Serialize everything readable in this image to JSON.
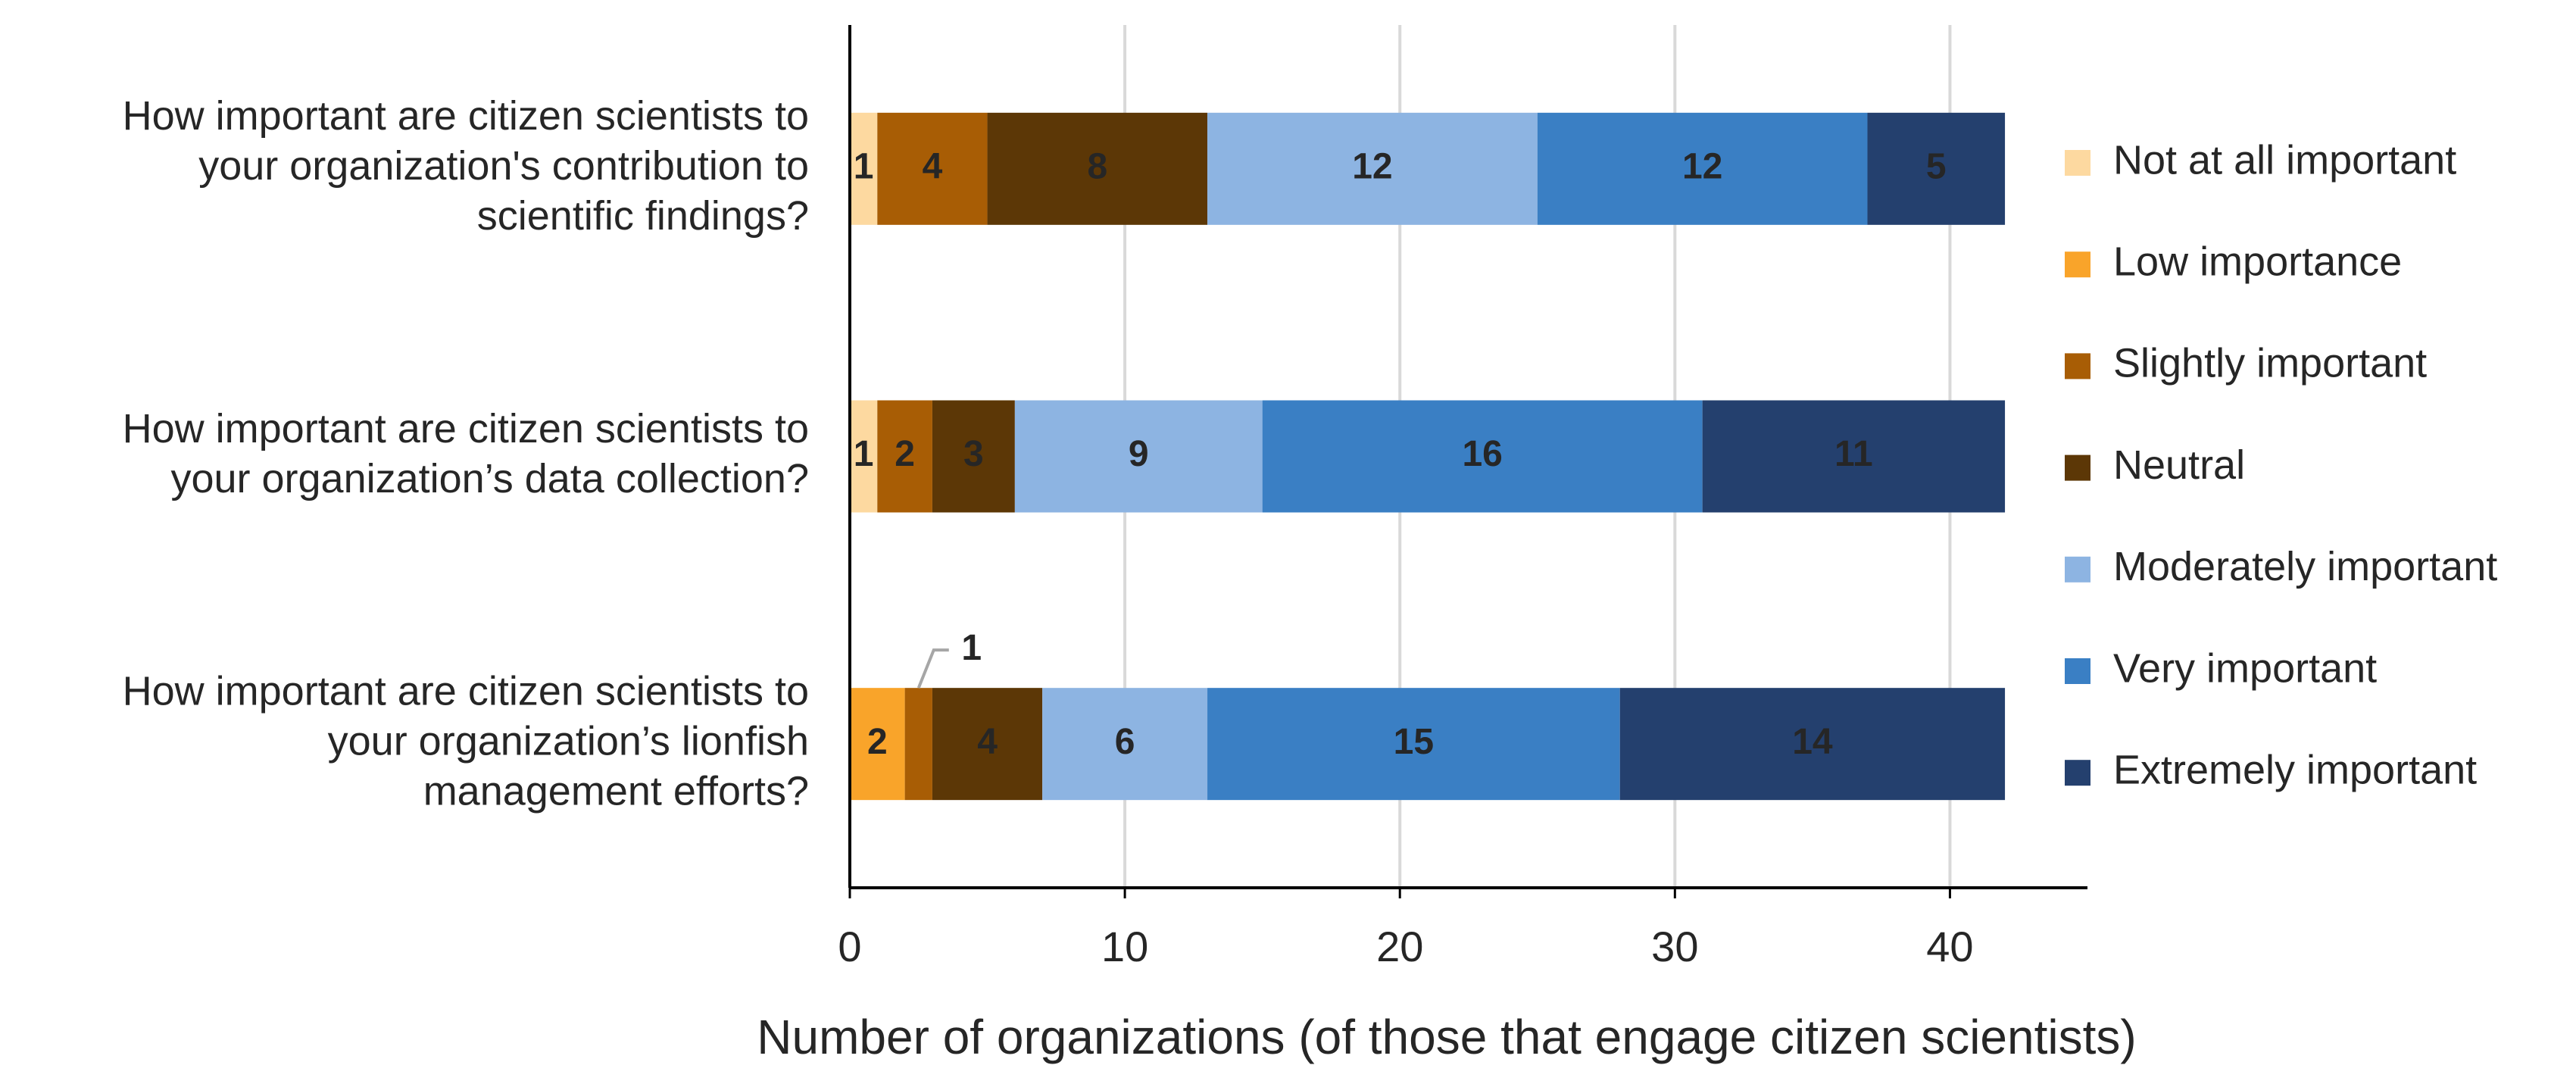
{
  "chart_data": {
    "type": "stacked-bar-horizontal",
    "categories": [
      [
        "How important are citizen scientists to",
        "your organization's contribution to",
        "scientific findings?"
      ],
      [
        "How important are citizen scientists to",
        "your organization’s data collection?"
      ],
      [
        "How important are citizen scientists to",
        "your organization’s lionfish",
        "management efforts?"
      ]
    ],
    "series": [
      {
        "name": "Not at all important",
        "color": "#fdd9a0",
        "values": [
          1,
          1,
          0
        ]
      },
      {
        "name": "Low importance",
        "color": "#f9a42a",
        "values": [
          0,
          0,
          2
        ]
      },
      {
        "name": "Slightly important",
        "color": "#a85d05",
        "values": [
          4,
          2,
          1
        ]
      },
      {
        "name": "Neutral",
        "color": "#5c3706",
        "values": [
          8,
          3,
          4
        ]
      },
      {
        "name": "Moderately important",
        "color": "#8db4e2",
        "values": [
          12,
          9,
          6
        ]
      },
      {
        "name": "Very important",
        "color": "#3a7fc4",
        "values": [
          12,
          16,
          15
        ]
      },
      {
        "name": "Extremely important",
        "color": "#24406e",
        "values": [
          5,
          11,
          14
        ]
      }
    ],
    "x_label": "Number of organizations (of those that engage citizen scientists)",
    "xlim": [
      0,
      45
    ],
    "xticks": [
      0,
      10,
      20,
      30,
      40
    ],
    "grid": true,
    "legend": "right"
  }
}
